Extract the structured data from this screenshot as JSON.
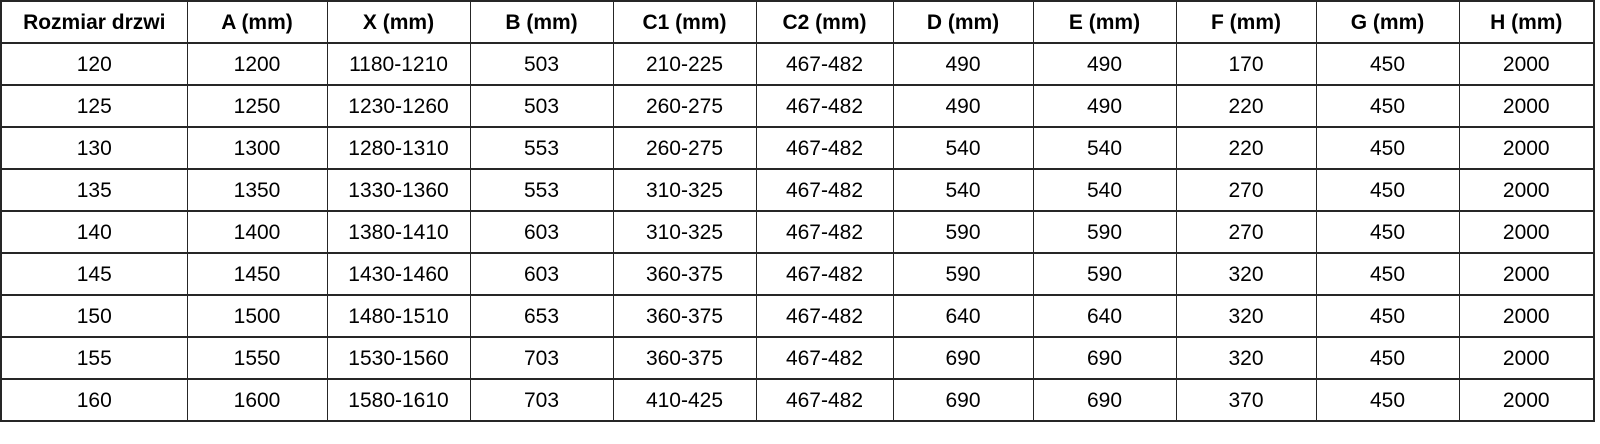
{
  "table": {
    "title": "door-dimensions-table",
    "border_color": "#262626",
    "text_color": "#000000",
    "background_color": "#ffffff",
    "headers": [
      "Rozmiar drzwi",
      "A (mm)",
      "X (mm)",
      "B (mm)",
      "C1 (mm)",
      "C2 (mm)",
      "D (mm)",
      "E (mm)",
      "F (mm)",
      "G (mm)",
      "H (mm)"
    ],
    "rows": [
      [
        "120",
        "1200",
        "1180-1210",
        "503",
        "210-225",
        "467-482",
        "490",
        "490",
        "170",
        "450",
        "2000"
      ],
      [
        "125",
        "1250",
        "1230-1260",
        "503",
        "260-275",
        "467-482",
        "490",
        "490",
        "220",
        "450",
        "2000"
      ],
      [
        "130",
        "1300",
        "1280-1310",
        "553",
        "260-275",
        "467-482",
        "540",
        "540",
        "220",
        "450",
        "2000"
      ],
      [
        "135",
        "1350",
        "1330-1360",
        "553",
        "310-325",
        "467-482",
        "540",
        "540",
        "270",
        "450",
        "2000"
      ],
      [
        "140",
        "1400",
        "1380-1410",
        "603",
        "310-325",
        "467-482",
        "590",
        "590",
        "270",
        "450",
        "2000"
      ],
      [
        "145",
        "1450",
        "1430-1460",
        "603",
        "360-375",
        "467-482",
        "590",
        "590",
        "320",
        "450",
        "2000"
      ],
      [
        "150",
        "1500",
        "1480-1510",
        "653",
        "360-375",
        "467-482",
        "640",
        "640",
        "320",
        "450",
        "2000"
      ],
      [
        "155",
        "1550",
        "1530-1560",
        "703",
        "360-375",
        "467-482",
        "690",
        "690",
        "320",
        "450",
        "2000"
      ],
      [
        "160",
        "1600",
        "1580-1610",
        "703",
        "410-425",
        "467-482",
        "690",
        "690",
        "370",
        "450",
        "2000"
      ]
    ]
  }
}
